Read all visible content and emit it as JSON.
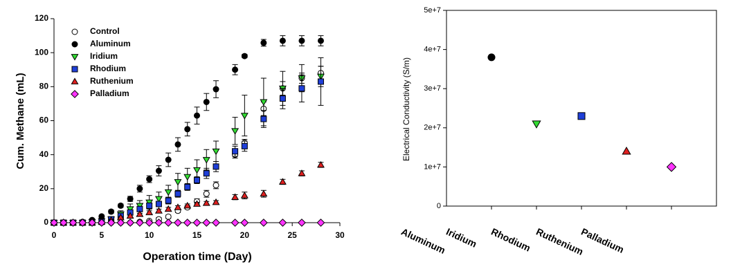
{
  "chart_data": [
    {
      "type": "scatter",
      "xlabel": "Operation time (Day)",
      "ylabel": "Cum. Methane (mL)",
      "xlim": [
        0,
        30
      ],
      "xticks": [
        0,
        5,
        10,
        15,
        20,
        25,
        30
      ],
      "ylim": [
        0,
        120
      ],
      "yticks": [
        0,
        20,
        40,
        60,
        80,
        100,
        120
      ],
      "legend": "upper left",
      "x": [
        0,
        1,
        2,
        3,
        4,
        5,
        6,
        7,
        8,
        9,
        10,
        11,
        12,
        13,
        14,
        15,
        16,
        17,
        19,
        20,
        22,
        24,
        26,
        28
      ],
      "series": [
        {
          "name": "Control",
          "color": "#ffffff",
          "marker": "circle",
          "values": [
            0,
            0,
            0,
            0,
            0,
            0,
            0,
            0,
            0,
            0.5,
            1,
            2,
            3.5,
            7,
            9,
            12.5,
            17,
            22,
            40,
            47,
            67,
            79,
            85,
            88
          ],
          "errors": [
            0,
            0,
            0,
            0,
            0,
            0,
            0,
            0,
            0,
            0,
            0.5,
            1,
            1,
            1,
            1,
            1.5,
            2,
            2,
            2,
            2,
            4,
            4,
            3,
            4
          ]
        },
        {
          "name": "Aluminum",
          "color": "#000000",
          "marker": "circle",
          "values": [
            0,
            0,
            0,
            0.5,
            1.6,
            3.7,
            6.5,
            10,
            14,
            20,
            25.6,
            30.5,
            37,
            46,
            55,
            63,
            71,
            78.5,
            90,
            98,
            105.8,
            107,
            107,
            107
          ],
          "errors": [
            0,
            0,
            0,
            0.3,
            0.5,
            0.8,
            1,
            1,
            1.5,
            2,
            2,
            3,
            4,
            4,
            4,
            5,
            5,
            5,
            3,
            1,
            2,
            3,
            3,
            3
          ]
        },
        {
          "name": "Iridium",
          "color": "#33dd33",
          "marker": "triangle-down",
          "values": [
            0,
            0,
            0,
            0,
            0.5,
            1,
            2,
            5,
            8,
            10,
            12,
            14,
            18,
            24,
            27,
            31,
            37,
            42,
            54,
            63,
            71,
            79,
            85,
            86
          ],
          "errors": [
            0,
            0,
            0,
            0,
            0.5,
            0.5,
            1,
            2,
            3,
            3,
            4,
            4,
            4,
            5,
            5,
            6,
            6,
            6,
            8,
            12,
            14,
            10,
            8,
            6
          ]
        },
        {
          "name": "Rhodium",
          "color": "#1f3fd8",
          "marker": "square",
          "values": [
            0,
            0,
            0,
            0,
            0,
            0.5,
            2,
            4,
            6,
            8,
            10,
            11,
            13,
            17,
            21,
            25,
            29,
            33,
            42,
            45,
            61,
            73,
            79,
            83
          ],
          "errors": [
            0,
            0,
            0,
            0,
            0,
            0.5,
            0.5,
            1,
            1,
            1,
            1.5,
            1.5,
            2,
            2,
            2,
            2,
            3,
            3,
            3,
            3,
            5,
            6,
            8,
            14
          ]
        },
        {
          "name": "Ruthenium",
          "color": "#e02020",
          "marker": "triangle-up",
          "values": [
            0,
            0,
            0,
            0,
            0,
            0.5,
            1.5,
            3,
            4,
            5,
            6,
            7,
            8,
            9,
            10,
            11,
            11.5,
            12,
            15,
            16,
            17,
            24,
            29,
            34
          ],
          "errors": [
            0,
            0,
            0,
            0,
            0,
            0.3,
            0.5,
            0.5,
            0.5,
            0.5,
            1,
            1,
            1,
            1,
            1,
            1,
            1,
            1,
            1.5,
            2,
            2,
            1.5,
            1.5,
            1.5
          ]
        },
        {
          "name": "Palladium",
          "color": "#ff33ff",
          "marker": "diamond",
          "values": [
            0,
            0,
            0,
            0,
            0,
            0,
            0,
            0,
            0,
            0,
            0,
            0,
            0,
            0,
            0,
            0,
            0,
            0,
            0,
            0,
            0,
            0,
            0,
            0
          ]
        }
      ]
    },
    {
      "type": "scatter",
      "ylabel": "Electrical Conductivity (S/m)",
      "ylim": [
        0,
        50000000
      ],
      "yticks": [
        0,
        {
          "value": 10000000,
          "label": "1e+7"
        },
        {
          "value": 20000000,
          "label": "2e+7"
        },
        {
          "value": 30000000,
          "label": "3e+7"
        },
        {
          "value": 40000000,
          "label": "4e+7"
        },
        {
          "value": 50000000,
          "label": "5e+7"
        }
      ],
      "categories": [
        "Aluminum",
        "Iridium",
        "Rhodium",
        "Ruthenium",
        "Palladium"
      ],
      "values": [
        38000000,
        21000000,
        23000000,
        14000000,
        10000000
      ],
      "colors": [
        "#000000",
        "#33dd33",
        "#1f3fd8",
        "#e02020",
        "#ff33ff"
      ],
      "markers": [
        "circle",
        "triangle-down",
        "square",
        "triangle-up",
        "diamond"
      ]
    }
  ]
}
